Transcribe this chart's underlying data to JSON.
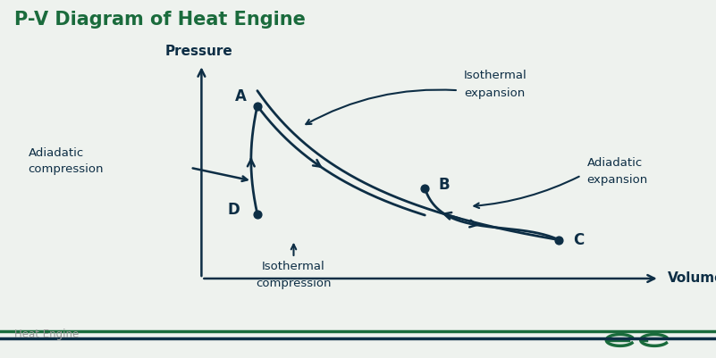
{
  "title": "P-V Diagram of Heat Engine",
  "title_color": "#1a6b3c",
  "title_fontsize": 15,
  "bg_color": "#eef2ee",
  "curve_color": "#0d2e45",
  "axis_color": "#0d2e45",
  "label_color": "#0d2e45",
  "footer_text": "Heat Engine",
  "footer_color": "#999999",
  "footer_line_color1": "#1a6b3c",
  "footer_line_color2": "#0d2e45",
  "logo_color": "#1a6b3c",
  "points": {
    "A": [
      2.8,
      8.2
    ],
    "B": [
      5.8,
      5.0
    ],
    "C": [
      8.2,
      3.0
    ],
    "D": [
      2.8,
      4.0
    ]
  },
  "xlim": [
    0.5,
    10.5
  ],
  "ylim": [
    0.5,
    10.5
  ],
  "ax_orig_x": 1.8,
  "ax_orig_y": 1.5,
  "ax_end_x": 10.0,
  "ax_end_y": 9.8
}
